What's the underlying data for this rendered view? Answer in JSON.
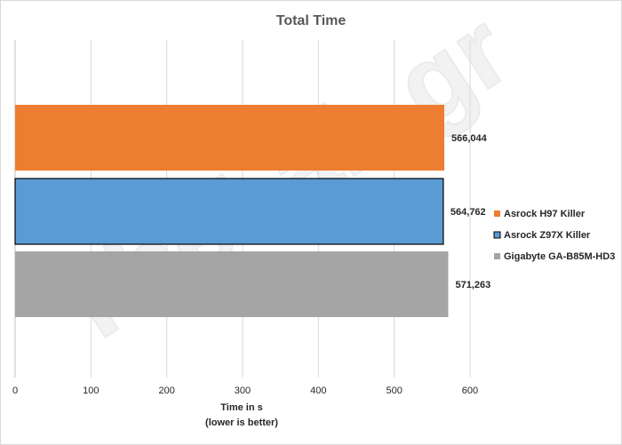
{
  "chart_data": {
    "type": "bar",
    "orientation": "horizontal",
    "title": "Total Time",
    "xlabel_line1": "Time in s",
    "xlabel_line2": "(lower is better)",
    "ylabel": "",
    "xlim": [
      0,
      700
    ],
    "ticks": [
      "0",
      "100",
      "200",
      "300",
      "400",
      "500",
      "600"
    ],
    "tick_values": [
      0,
      100,
      200,
      300,
      400,
      500,
      600
    ],
    "grid": true,
    "legend_position": "right",
    "watermark": "TheLab.gr",
    "series": [
      {
        "name": "Asrock H97 Killer",
        "value": 566.044,
        "label": "566,044",
        "color": "#ed7d31"
      },
      {
        "name": "Asrock Z97X Killer",
        "value": 564.762,
        "label": "564,762",
        "color": "#5b9bd5"
      },
      {
        "name": "Gigabyte GA-B85M-HD3",
        "value": 571.263,
        "label": "571,263",
        "color": "#a5a5a5"
      }
    ]
  }
}
